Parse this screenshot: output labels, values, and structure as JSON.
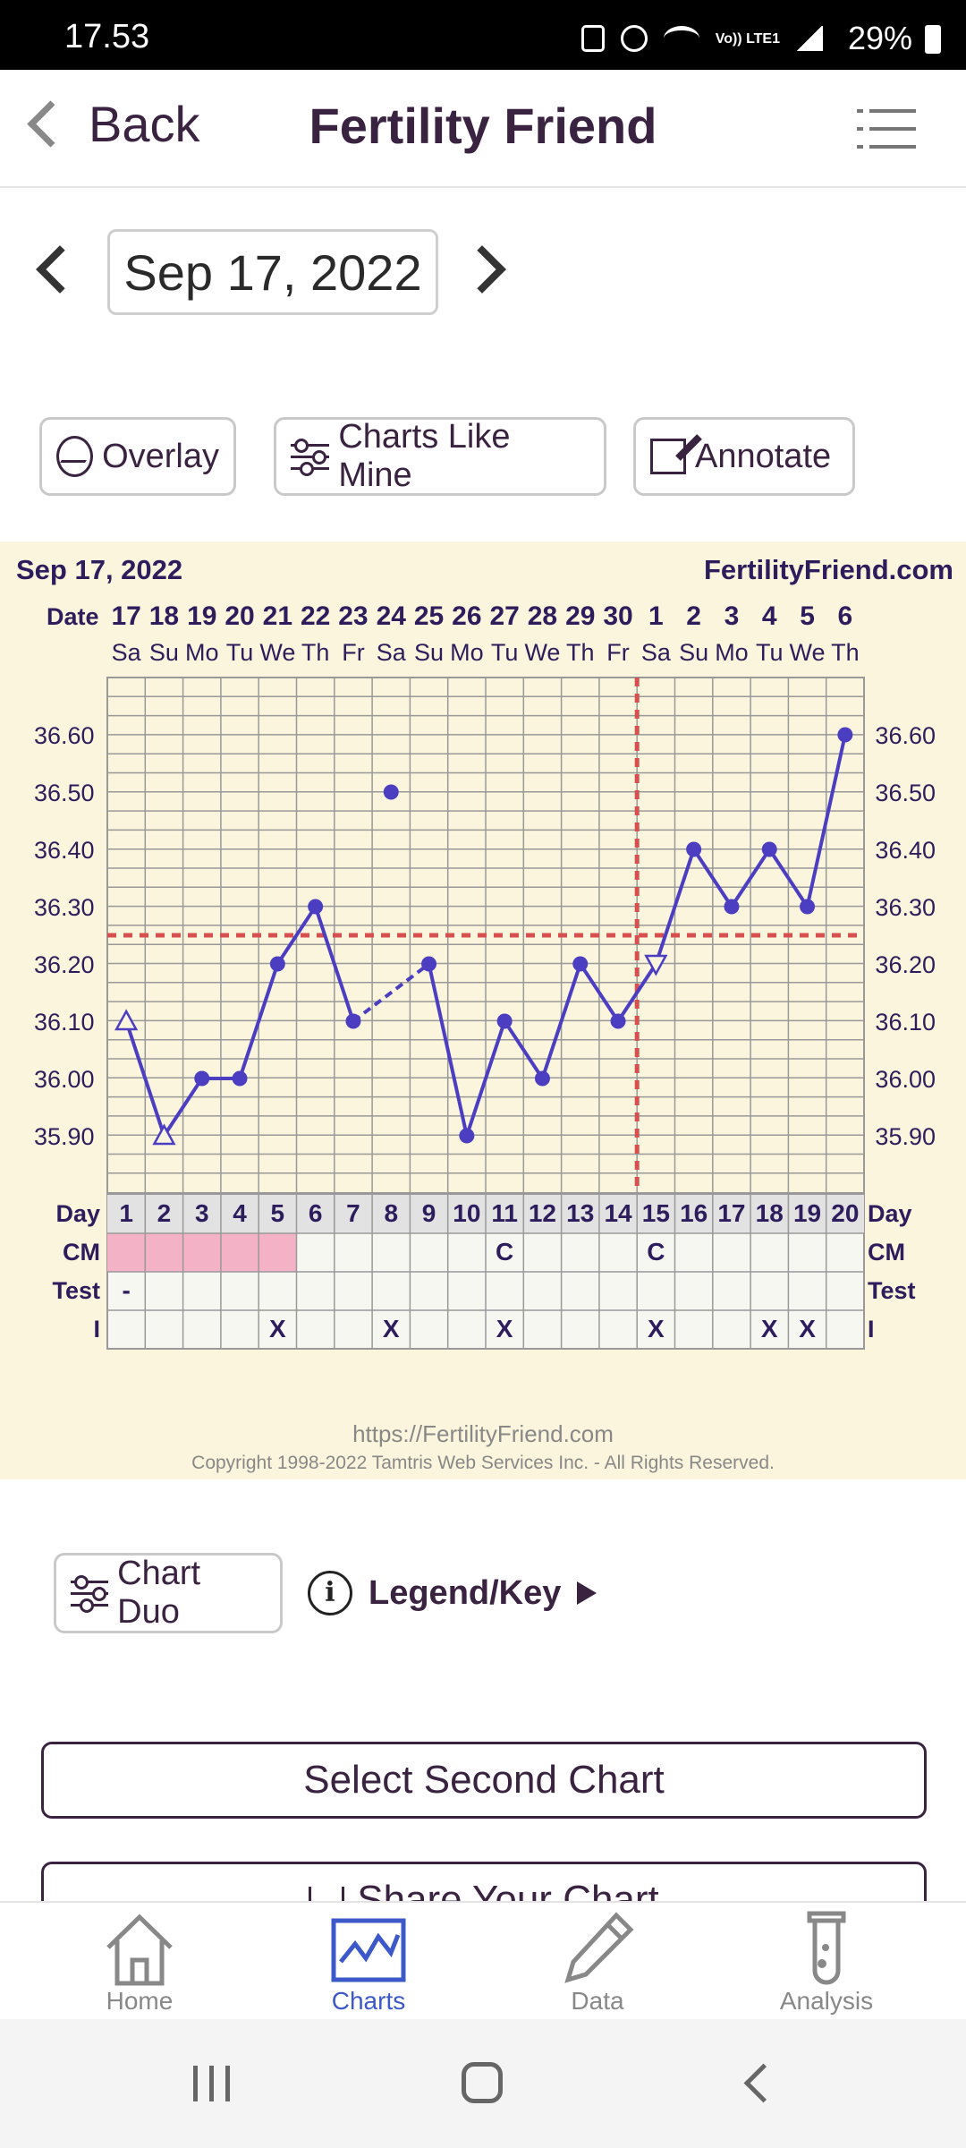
{
  "status_bar": {
    "time": "17.53",
    "lte": "Vo)) LTE1",
    "battery": "29%"
  },
  "header": {
    "back_label": "Back",
    "title": "Fertility Friend"
  },
  "date_nav": {
    "date": "Sep 17, 2022"
  },
  "actions": {
    "overlay": "Overlay",
    "charts_like_mine": "Charts Like Mine",
    "annotate": "Annotate"
  },
  "chart_data": {
    "type": "line",
    "title": "Sep 17, 2022",
    "site": "FertilityFriend.com",
    "date_label": "Date",
    "dates": [
      "17",
      "18",
      "19",
      "20",
      "21",
      "22",
      "23",
      "24",
      "25",
      "26",
      "27",
      "28",
      "29",
      "30",
      "1",
      "2",
      "3",
      "4",
      "5",
      "6"
    ],
    "weekdays": [
      "Sa",
      "Su",
      "Mo",
      "Tu",
      "We",
      "Th",
      "Fr",
      "Sa",
      "Su",
      "Mo",
      "Tu",
      "We",
      "Th",
      "Fr",
      "Sa",
      "Su",
      "Mo",
      "Tu",
      "We",
      "Th"
    ],
    "cycle_days": [
      "1",
      "2",
      "3",
      "4",
      "5",
      "6",
      "7",
      "8",
      "9",
      "10",
      "11",
      "12",
      "13",
      "14",
      "15",
      "16",
      "17",
      "18",
      "19",
      "20"
    ],
    "y_ticks": [
      "36.60",
      "36.50",
      "36.40",
      "36.30",
      "36.20",
      "36.10",
      "36.00",
      "35.90"
    ],
    "ylim": [
      35.8,
      36.7
    ],
    "temperatures": [
      36.1,
      35.9,
      36.0,
      36.0,
      36.2,
      36.3,
      36.1,
      36.5,
      36.2,
      35.9,
      36.1,
      36.0,
      36.2,
      36.1,
      36.2,
      36.4,
      36.3,
      36.4,
      36.3,
      36.6
    ],
    "point_styles": [
      "open-triangle",
      "open-triangle",
      "dot",
      "dot",
      "dot",
      "dot",
      "dot",
      "dot",
      "dot",
      "dot",
      "dot",
      "dot",
      "dot",
      "dot",
      "open-triangle-down",
      "dot",
      "dot",
      "dot",
      "dot",
      "dot"
    ],
    "discarded_day_index": 7,
    "coverline_temp": 36.25,
    "ovulation_day_index": 14,
    "colors": {
      "line": "#4b3ec1",
      "coverline": "#d65050",
      "period": "#f4b2c6",
      "grid": "#999999"
    },
    "rows": [
      {
        "label": "Day",
        "values": [
          "1",
          "2",
          "3",
          "4",
          "5",
          "6",
          "7",
          "8",
          "9",
          "10",
          "11",
          "12",
          "13",
          "14",
          "15",
          "16",
          "17",
          "18",
          "19",
          "20"
        ]
      },
      {
        "label": "CM",
        "values": [
          "",
          "",
          "",
          "",
          "",
          "",
          "",
          "",
          "",
          "",
          "C",
          "",
          "",
          "",
          "C",
          "",
          "",
          "",
          "",
          ""
        ],
        "period_days": [
          0,
          1,
          2,
          3,
          4
        ]
      },
      {
        "label": "Test",
        "values": [
          "-",
          "",
          "",
          "",
          "",
          "",
          "",
          "",
          "",
          "",
          "",
          "",
          "",
          "",
          "",
          "",
          "",
          "",
          "",
          ""
        ]
      },
      {
        "label": "I",
        "values": [
          "",
          "",
          "",
          "",
          "X",
          "",
          "",
          "X",
          "",
          "",
          "X",
          "",
          "",
          "",
          "X",
          "",
          "",
          "X",
          "X",
          ""
        ]
      }
    ],
    "footer_url": "https://FertilityFriend.com",
    "footer_copyright": "Copyright 1998-2022 Tamtris Web Services Inc. - All Rights Reserved."
  },
  "below_chart": {
    "chart_duo": "Chart Duo",
    "legend_key": "Legend/Key",
    "info_icon": "i",
    "select_second": "Select Second Chart",
    "share": "Share Your Chart"
  },
  "bottom_nav": [
    {
      "label": "Home",
      "icon": "home-icon",
      "active": false
    },
    {
      "label": "Charts",
      "icon": "chart-icon",
      "active": true
    },
    {
      "label": "Data",
      "icon": "pencil-icon",
      "active": false
    },
    {
      "label": "Analysis",
      "icon": "test-tube-icon",
      "active": false
    }
  ]
}
